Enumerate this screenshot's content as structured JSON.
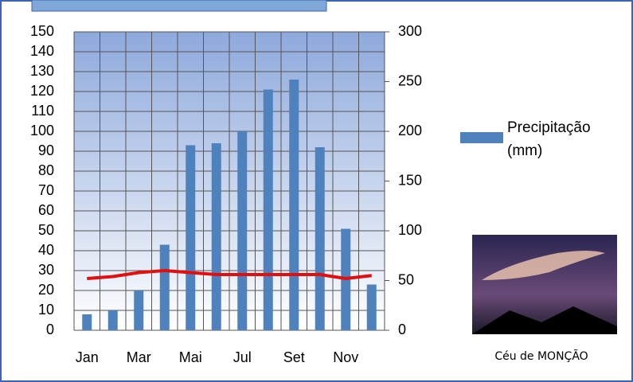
{
  "chart_data": {
    "type": "bar",
    "categories": [
      "Jan",
      null,
      "Mar",
      null,
      "Mai",
      null,
      "Jul",
      null,
      "Set",
      null,
      "Nov",
      null
    ],
    "series": [
      {
        "name": "Precipitação (mm)",
        "type": "bar",
        "color": "#4f81bd",
        "values": [
          8,
          10,
          20,
          43,
          93,
          94,
          100,
          121,
          126,
          92,
          51,
          23
        ]
      },
      {
        "type": "line",
        "color": "#e01010",
        "values": [
          26,
          27,
          29,
          30,
          29,
          28,
          28,
          28,
          28,
          28,
          26,
          27.5
        ]
      }
    ],
    "ylim": [
      0,
      150
    ],
    "yticks": [
      0,
      10,
      20,
      30,
      40,
      50,
      60,
      70,
      80,
      90,
      100,
      110,
      120,
      130,
      140,
      150
    ],
    "y2lim": [
      0,
      300
    ],
    "y2ticks": [
      0,
      50,
      100,
      150,
      200,
      250,
      300
    ],
    "grid": true,
    "legend": "right"
  },
  "image_caption": "Céu de MONÇÃO"
}
